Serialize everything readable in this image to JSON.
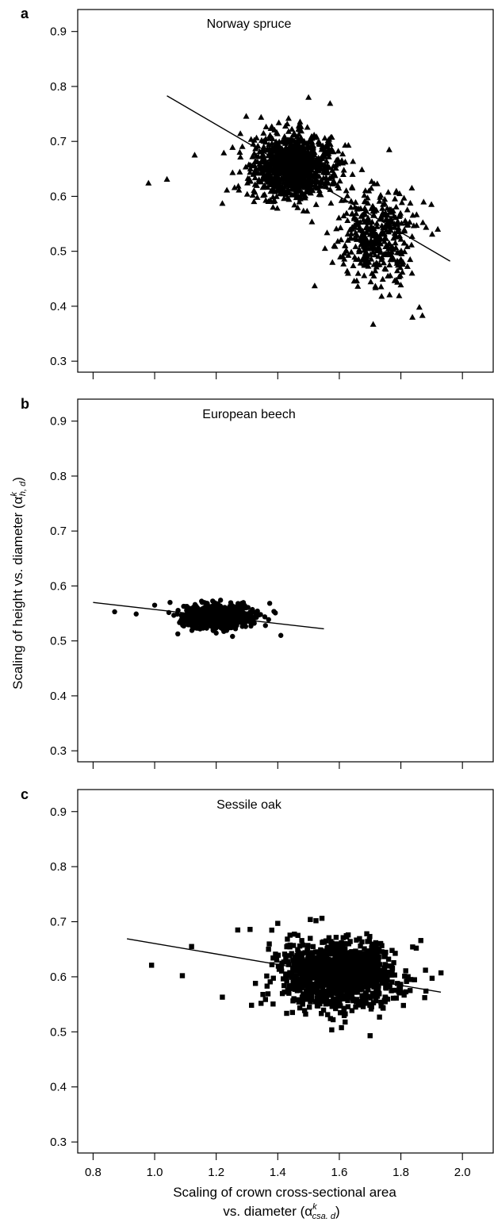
{
  "chart_data": [
    {
      "type": "scatter",
      "panel_label": "a",
      "title": "Norway spruce",
      "marker": "triangle",
      "xlim": [
        0.75,
        2.1
      ],
      "ylim": [
        0.28,
        0.94
      ],
      "yticks": [
        "0.9",
        "0.8",
        "0.7",
        "0.6",
        "0.5",
        "0.4",
        "0.3"
      ],
      "ytick_values": [
        0.9,
        0.8,
        0.7,
        0.6,
        0.5,
        0.4,
        0.3
      ],
      "xtick_values": [
        0.8,
        1.0,
        1.2,
        1.4,
        1.6,
        1.8,
        2.0
      ],
      "show_xtick_labels": false,
      "fit_line": {
        "x": [
          1.04,
          1.96
        ],
        "y": [
          0.783,
          0.482
        ]
      },
      "clusters": [
        {
          "cx": 1.45,
          "cy": 0.655,
          "sx": 0.065,
          "sy": 0.028,
          "n": 1100
        },
        {
          "cx": 1.72,
          "cy": 0.53,
          "sx": 0.06,
          "sy": 0.045,
          "n": 400
        }
      ],
      "points": [
        [
          0.98,
          0.624
        ],
        [
          1.04,
          0.631
        ],
        [
          1.22,
          0.587
        ],
        [
          1.5,
          0.78
        ],
        [
          1.57,
          0.769
        ],
        [
          1.52,
          0.437
        ],
        [
          1.71,
          0.367
        ],
        [
          1.87,
          0.383
        ],
        [
          1.86,
          0.398
        ],
        [
          1.92,
          0.54
        ],
        [
          1.13,
          0.675
        ]
      ]
    },
    {
      "type": "scatter",
      "panel_label": "b",
      "title": "European beech",
      "marker": "circle",
      "xlim": [
        0.75,
        2.1
      ],
      "ylim": [
        0.28,
        0.94
      ],
      "yticks": [
        "0.9",
        "0.8",
        "0.7",
        "0.6",
        "0.5",
        "0.4",
        "0.3"
      ],
      "ytick_values": [
        0.9,
        0.8,
        0.7,
        0.6,
        0.5,
        0.4,
        0.3
      ],
      "xtick_values": [
        0.8,
        1.0,
        1.2,
        1.4,
        1.6,
        1.8,
        2.0
      ],
      "show_xtick_labels": false,
      "fit_line": {
        "x": [
          0.8,
          1.55
        ],
        "y": [
          0.57,
          0.522
        ]
      },
      "clusters": [
        {
          "cx": 1.2,
          "cy": 0.546,
          "sx": 0.055,
          "sy": 0.011,
          "n": 700
        }
      ],
      "points": [
        [
          0.87,
          0.553
        ],
        [
          0.94,
          0.549
        ],
        [
          1.41,
          0.51
        ],
        [
          1.0,
          0.565
        ],
        [
          1.05,
          0.57
        ],
        [
          1.36,
          0.528
        ]
      ]
    },
    {
      "type": "scatter",
      "panel_label": "c",
      "title": "Sessile oak",
      "marker": "square",
      "xlim": [
        0.75,
        2.1
      ],
      "ylim": [
        0.28,
        0.94
      ],
      "yticks": [
        "0.9",
        "0.8",
        "0.7",
        "0.6",
        "0.5",
        "0.4",
        "0.3"
      ],
      "ytick_values": [
        0.9,
        0.8,
        0.7,
        0.6,
        0.5,
        0.4,
        0.3
      ],
      "xticks": [
        "0.8",
        "1.0",
        "1.2",
        "1.4",
        "1.6",
        "1.8",
        "2.0"
      ],
      "xtick_values": [
        0.8,
        1.0,
        1.2,
        1.4,
        1.6,
        1.8,
        2.0
      ],
      "show_xtick_labels": true,
      "fit_line": {
        "x": [
          0.91,
          1.93
        ],
        "y": [
          0.669,
          0.572
        ]
      },
      "clusters": [
        {
          "cx": 1.6,
          "cy": 0.605,
          "sx": 0.09,
          "sy": 0.03,
          "n": 1300
        }
      ],
      "points": [
        [
          0.99,
          0.621
        ],
        [
          1.09,
          0.602
        ],
        [
          1.12,
          0.655
        ],
        [
          1.22,
          0.563
        ],
        [
          1.27,
          0.685
        ],
        [
          1.31,
          0.686
        ],
        [
          1.7,
          0.493
        ],
        [
          1.85,
          0.652
        ],
        [
          1.88,
          0.612
        ],
        [
          1.83,
          0.575
        ],
        [
          1.4,
          0.697
        ],
        [
          1.37,
          0.65
        ]
      ]
    }
  ],
  "shared_ylabel": "Scaling of height vs. diameter (α",
  "shared_ylabel_sup": "k",
  "shared_ylabel_sub": "h, d",
  "shared_ylabel_close": ")",
  "shared_xlabel_line1": "Scaling of crown cross-sectional area",
  "shared_xlabel_line2": "vs. diameter (α",
  "shared_xlabel_sup": "k",
  "shared_xlabel_sub": "csa. d",
  "shared_xlabel_close": ")"
}
